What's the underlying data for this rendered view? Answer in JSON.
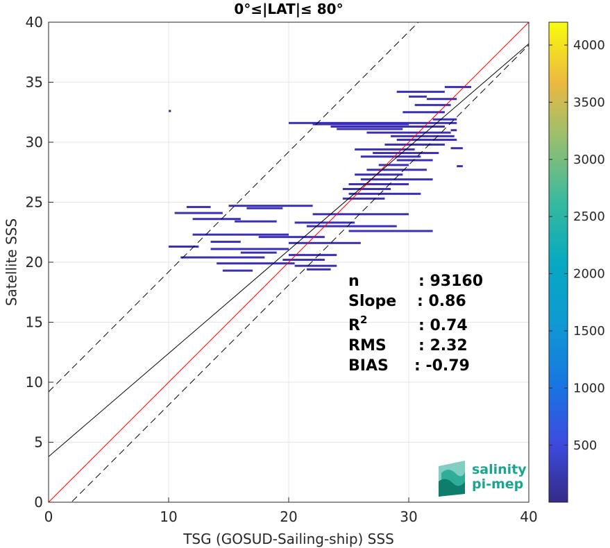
{
  "chart_data": {
    "type": "heatmap",
    "title": "0°≤|LAT|≤ 80°",
    "xlabel": "TSG (GOSUD-Sailing-ship) SSS",
    "ylabel": "Satellite SSS",
    "xlim": [
      0,
      40
    ],
    "ylim": [
      0,
      40
    ],
    "xticks": [
      "0",
      "10",
      "20",
      "30",
      "40"
    ],
    "yticks": [
      "0",
      "5",
      "10",
      "15",
      "20",
      "25",
      "30",
      "35",
      "40"
    ],
    "grid": true,
    "colorbar": {
      "range": [
        1,
        4200
      ],
      "ticks": [
        "500",
        "1000",
        "1500",
        "2000",
        "2500",
        "3000",
        "3500",
        "4000"
      ],
      "colormap": "parula"
    },
    "lines": [
      {
        "kind": "identity",
        "color": "#ff0000",
        "slope": 1,
        "intercept": 0
      },
      {
        "kind": "regression",
        "color": "#000000",
        "slope": 0.86,
        "intercept": 3.8
      },
      {
        "kind": "upper-bound",
        "color": "#000000",
        "dash": true,
        "slope": 1,
        "intercept": 9.2
      },
      {
        "kind": "lower-bound",
        "color": "#000000",
        "dash": true,
        "slope": 1,
        "intercept": -1.9
      }
    ],
    "density_segments": [
      [
        10.0,
        32.6,
        10.2
      ],
      [
        20.0,
        31.6,
        34.0
      ],
      [
        22.0,
        31.5,
        30.0
      ],
      [
        23.5,
        31.3,
        33.0
      ],
      [
        24.0,
        31.1,
        29.5
      ],
      [
        26.5,
        30.8,
        33.5
      ],
      [
        28.5,
        30.5,
        33.8
      ],
      [
        29.0,
        30.2,
        34.0
      ],
      [
        28.0,
        29.8,
        33.0
      ],
      [
        25.5,
        29.4,
        30.5
      ],
      [
        27.0,
        29.1,
        32.5
      ],
      [
        26.0,
        28.8,
        31.0
      ],
      [
        29.0,
        28.5,
        32.0
      ],
      [
        27.5,
        28.1,
        30.0
      ],
      [
        26.5,
        27.7,
        31.5
      ],
      [
        25.5,
        27.3,
        29.5
      ],
      [
        26.0,
        26.9,
        32.0
      ],
      [
        25.0,
        26.5,
        30.0
      ],
      [
        24.5,
        26.1,
        28.5
      ],
      [
        25.0,
        25.7,
        31.0
      ],
      [
        24.5,
        25.3,
        28.0
      ],
      [
        11.5,
        24.6,
        13.5
      ],
      [
        15.0,
        24.7,
        22.0
      ],
      [
        16.5,
        24.5,
        19.5
      ],
      [
        10.5,
        24.1,
        14.5
      ],
      [
        22.0,
        24.0,
        30.0
      ],
      [
        12.0,
        23.6,
        16.0
      ],
      [
        15.5,
        23.4,
        19.0
      ],
      [
        20.5,
        23.3,
        25.5
      ],
      [
        21.5,
        23.0,
        29.0
      ],
      [
        25.0,
        22.6,
        32.0
      ],
      [
        12.0,
        22.3,
        20.0
      ],
      [
        17.5,
        22.1,
        23.0
      ],
      [
        13.5,
        21.7,
        16.0
      ],
      [
        20.0,
        21.6,
        26.0
      ],
      [
        10.0,
        21.3,
        12.5
      ],
      [
        13.5,
        21.1,
        20.0
      ],
      [
        16.0,
        20.8,
        19.0
      ],
      [
        20.0,
        20.6,
        24.0
      ],
      [
        11.0,
        20.4,
        18.0
      ],
      [
        19.5,
        20.2,
        23.0
      ],
      [
        14.0,
        19.9,
        20.5
      ],
      [
        20.5,
        19.7,
        24.0
      ],
      [
        14.5,
        19.3,
        17.0
      ],
      [
        21.5,
        19.4,
        23.5
      ],
      [
        31.5,
        33.6,
        34.0
      ],
      [
        33.0,
        34.6,
        35.2
      ],
      [
        30.5,
        33.1,
        33.5
      ],
      [
        29.5,
        32.5,
        33.0
      ],
      [
        32.0,
        31.9,
        34.0
      ],
      [
        33.5,
        31.0,
        34.0
      ],
      [
        33.5,
        29.5,
        34.5
      ],
      [
        34.0,
        28.0,
        34.5
      ],
      [
        29.0,
        34.2,
        33.0
      ],
      [
        30.0,
        33.8,
        31.5
      ]
    ],
    "annotations": {
      "n_label": "n",
      "n_value": ": 93160",
      "slope_label": "Slope",
      "slope_value": ": 0.86",
      "r2_label": "R",
      "r2_sup": "2",
      "r2_value": ": 0.74",
      "rms_label": "RMS",
      "rms_value": ": 2.32",
      "bias_label": "BIAS",
      "bias_value": ": -0.79"
    }
  },
  "logo": {
    "line1": "salinity",
    "line2": "pi-mep",
    "color": "#1aa58f"
  }
}
